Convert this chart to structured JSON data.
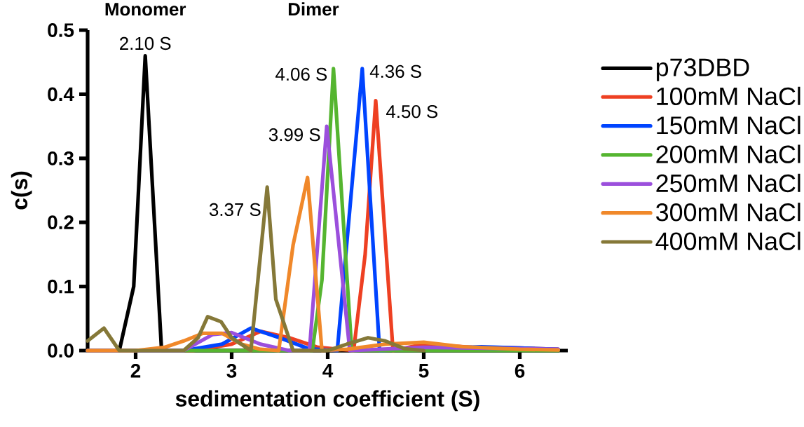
{
  "chart_data": {
    "type": "line",
    "xlabel": "sedimentation coefficient (S)",
    "ylabel": "c(s)",
    "xlim": [
      1.5,
      6.5
    ],
    "xticks": [
      2,
      3,
      4,
      5,
      6
    ],
    "ylim": [
      0,
      0.5
    ],
    "yticks": [
      {
        "value": 0,
        "label": "0.0"
      },
      0.1,
      0.2,
      0.3,
      0.4,
      0.5
    ],
    "grid": false,
    "legend": "right",
    "marker": "none",
    "line_style": "solid",
    "series": [
      {
        "name": "p73DBD",
        "color": "#000000",
        "x": [
          1.83,
          1.98,
          2.1,
          2.27,
          2.5,
          6.4
        ],
        "values": [
          0,
          0.1,
          0.46,
          0,
          0,
          0
        ]
      },
      {
        "name": "100mM NaCl",
        "color": "#ee4022",
        "x": [
          1.5,
          2.6,
          3.0,
          3.3,
          3.6,
          3.9,
          4.27,
          4.39,
          4.5,
          4.68,
          5.0,
          5.5,
          6.0,
          6.4
        ],
        "values": [
          0,
          0,
          0.01,
          0.03,
          0.02,
          0.005,
          0,
          0.15,
          0.39,
          0,
          0.01,
          0.005,
          0.004,
          0.002
        ]
      },
      {
        "name": "150mM NaCl",
        "color": "#0044ff",
        "x": [
          1.5,
          2.5,
          2.9,
          3.2,
          3.5,
          3.8,
          4.1,
          4.36,
          4.54,
          5.6,
          6.0,
          6.4
        ],
        "values": [
          0,
          0,
          0.01,
          0.035,
          0.02,
          0.003,
          0,
          0.44,
          0,
          0.006,
          0.004,
          0.002
        ]
      },
      {
        "name": "200mM NaCl",
        "color": "#55b530",
        "x": [
          1.5,
          3.84,
          3.94,
          4.06,
          4.25,
          6.4
        ],
        "values": [
          0,
          0,
          0.11,
          0.44,
          0,
          0
        ]
      },
      {
        "name": "250mM NaCl",
        "color": "#9b4fdc",
        "x": [
          1.5,
          2.5,
          2.8,
          3.0,
          3.3,
          3.6,
          3.81,
          3.99,
          4.23,
          5.0,
          6.4
        ],
        "values": [
          0,
          0,
          0.025,
          0.028,
          0.01,
          0,
          0,
          0.35,
          0,
          0.005,
          0.002
        ]
      },
      {
        "name": "300mM NaCl",
        "color": "#f0882a",
        "x": [
          1.5,
          2.0,
          2.3,
          2.5,
          2.7,
          2.9,
          3.1,
          3.3,
          3.49,
          3.64,
          3.79,
          3.94,
          4.2,
          4.6,
          5.0,
          5.4,
          6.0,
          6.4
        ],
        "values": [
          0,
          0,
          0.005,
          0.015,
          0.027,
          0.027,
          0.01,
          0.002,
          0,
          0.165,
          0.27,
          0,
          0.002,
          0.01,
          0.013,
          0.006,
          0.002,
          0.001
        ]
      },
      {
        "name": "400mM NaCl",
        "color": "#857838",
        "x": [
          1.5,
          1.67,
          1.83,
          2.5,
          2.65,
          2.75,
          2.89,
          3.0,
          3.2,
          3.37,
          3.46,
          3.64,
          4.0,
          4.2,
          4.42,
          4.6,
          4.8,
          5.0
        ],
        "values": [
          0.015,
          0.035,
          0,
          0,
          0.02,
          0.053,
          0.045,
          0.02,
          0,
          0.255,
          0.08,
          0,
          0,
          0.01,
          0.02,
          0.015,
          0.003,
          0
        ]
      }
    ],
    "annotations": [
      "Monomer",
      "Dimer",
      {
        "text": "2.10 S",
        "x": 2.1,
        "y": 0.46
      },
      {
        "text": "4.06 S",
        "x": 4.06,
        "y": 0.44
      },
      {
        "text": "4.36 S",
        "x": 4.36,
        "y": 0.44
      },
      {
        "text": "4.50 S",
        "x": 4.5,
        "y": 0.39
      },
      {
        "text": "3.99 S",
        "x": 3.99,
        "y": 0.35
      },
      {
        "text": "3.37 S",
        "x": 3.37,
        "y": 0.255
      }
    ]
  }
}
